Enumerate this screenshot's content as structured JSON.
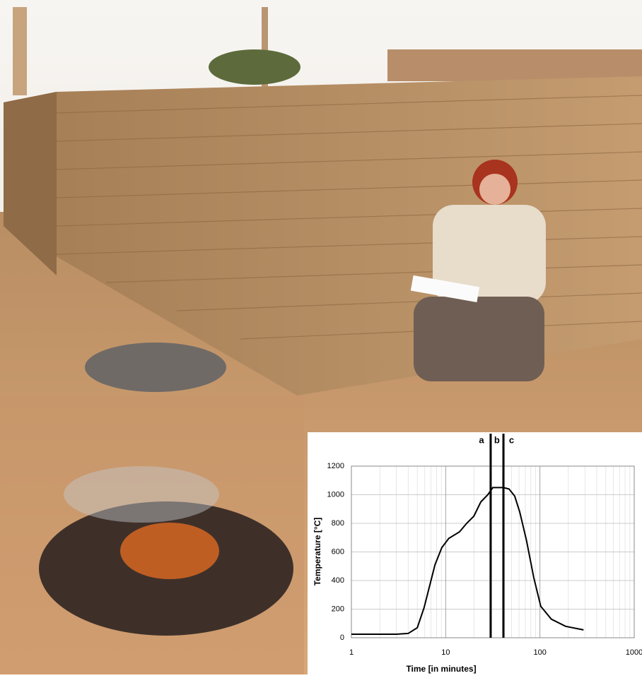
{
  "chart_data": {
    "type": "line",
    "x_label": "Time [in minutes]",
    "y_label": "Temperature [°C]",
    "xscale": "log",
    "xlim": [
      1,
      1000
    ],
    "xticks": [
      1,
      10,
      100,
      1000
    ],
    "minor_xticks": [
      2,
      3,
      4,
      5,
      6,
      7,
      8,
      9,
      20,
      30,
      40,
      50,
      60,
      70,
      80,
      90,
      200,
      300,
      400,
      500,
      600,
      700,
      800,
      900
    ],
    "ylim": [
      0,
      1200
    ],
    "yticks": [
      0,
      200,
      400,
      600,
      800,
      1000,
      1200
    ],
    "grid": true,
    "series": [
      {
        "color": "#000000",
        "x": [
          1,
          2,
          3,
          4,
          5,
          5.9,
          7.7,
          9.1,
          10.8,
          14,
          16.7,
          19.9,
          23.6,
          28,
          31.6,
          41,
          47,
          54,
          61,
          72,
          86,
          102,
          132,
          187,
          290
        ],
        "values": [
          25,
          25,
          25,
          30,
          70,
          210,
          510,
          630,
          695,
          740,
          800,
          850,
          950,
          1000,
          1050,
          1050,
          1040,
          990,
          880,
          680,
          420,
          220,
          130,
          80,
          55
        ]
      }
    ],
    "vlines": [
      30,
      41
    ],
    "annotations": [
      {
        "text": "a",
        "x": 24
      },
      {
        "text": "b",
        "x": 35
      },
      {
        "text": "c",
        "x": 50
      }
    ]
  }
}
